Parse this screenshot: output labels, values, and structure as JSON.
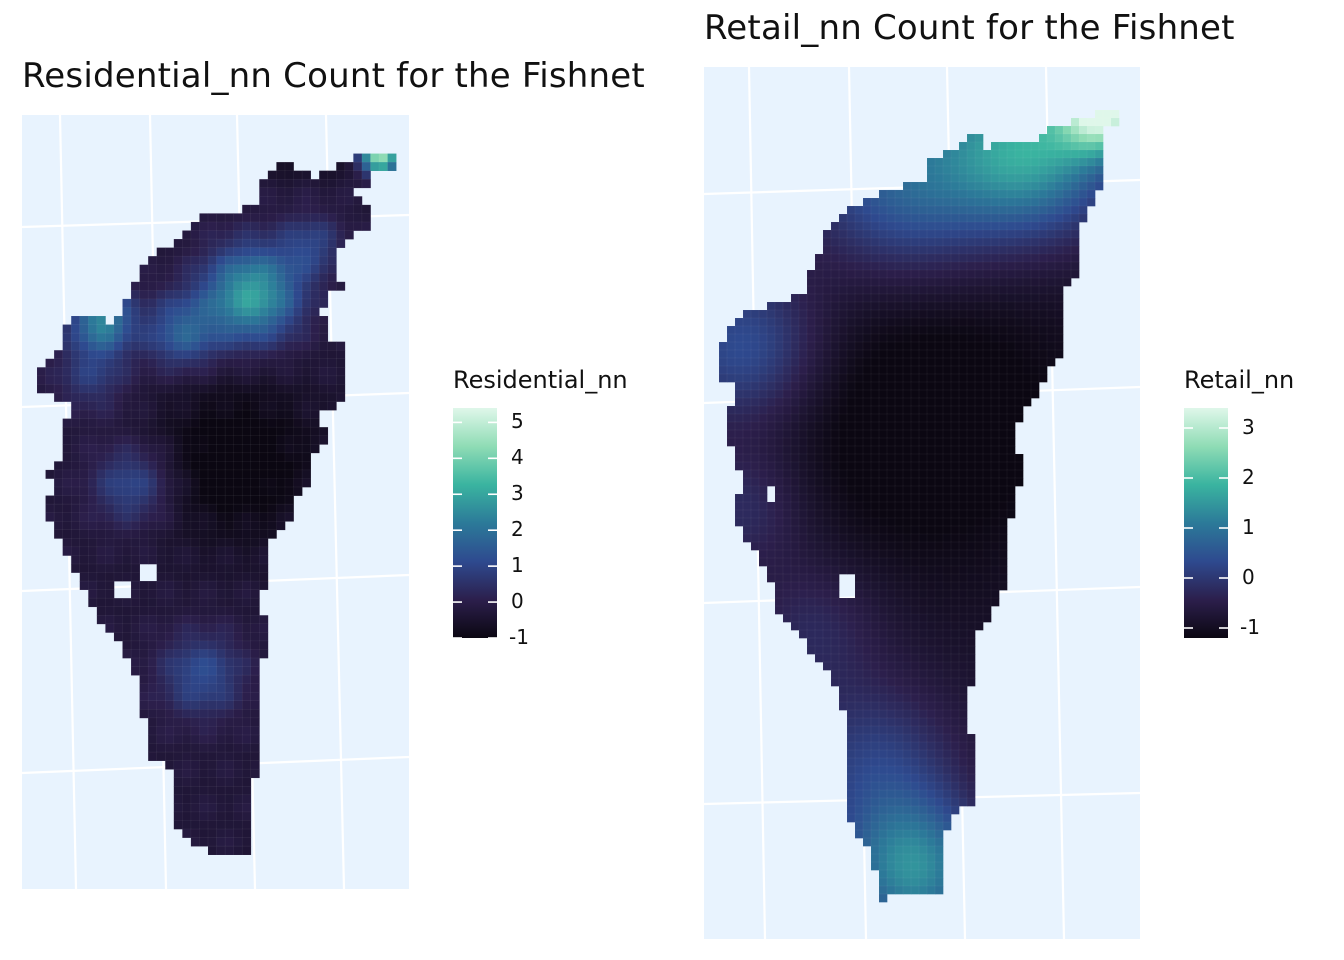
{
  "chart_data": [
    {
      "type": "heatmap",
      "title": "Residential_nn Count for the Fishnet",
      "legend": {
        "title": "Residential_nn",
        "ticks": [
          "5",
          "4",
          "3",
          "2",
          "1",
          "0",
          "-1"
        ],
        "range": [
          -1,
          5.4
        ],
        "placement": "right"
      },
      "grid": true,
      "background": "#e8f3fe",
      "colormap": [
        "#0b0712",
        "#2c1f4c",
        "#2e4a8f",
        "#2c7a99",
        "#3ab4a0",
        "#8fdcb5",
        "#dff7ea"
      ]
    },
    {
      "type": "heatmap",
      "title": "Retail_nn Count for the Fishnet",
      "legend": {
        "title": "Retail_nn",
        "ticks": [
          "3",
          "2",
          "1",
          "0",
          "-1"
        ],
        "range": [
          -1.2,
          3.4
        ],
        "placement": "right"
      },
      "grid": true,
      "background": "#e8f3fe",
      "colormap": [
        "#0b0712",
        "#2c1f4c",
        "#2e4a8f",
        "#2c7a99",
        "#3ab4a0",
        "#8fdcb5",
        "#dff7ea"
      ]
    }
  ]
}
